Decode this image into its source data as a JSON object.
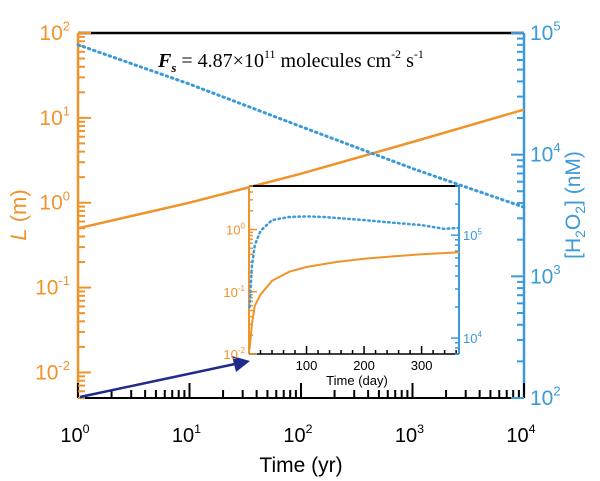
{
  "colors": {
    "left_axis": "#F0932B",
    "right_axis": "#3B9AD9",
    "frame_top": "#000000",
    "bottom_axis": "#000000",
    "arrow": "#1F2A8C"
  },
  "chart_data": [
    {
      "type": "line",
      "annotation": {
        "symbol": "F",
        "subscript": "s",
        "equals": " = 4.87×10",
        "exponent": "11",
        "units_text": " molecules cm",
        "units_exp1": "-2",
        "units_mid": " s",
        "units_exp2": "-1"
      },
      "xlabel": "Time (yr)",
      "x_scale": "log",
      "xlim": [
        1,
        10000
      ],
      "x_ticks": [
        {
          "value": 1,
          "base": "10",
          "exp": "0"
        },
        {
          "value": 10,
          "base": "10",
          "exp": "1"
        },
        {
          "value": 100,
          "base": "10",
          "exp": "2"
        },
        {
          "value": 1000,
          "base": "10",
          "exp": "3"
        },
        {
          "value": 10000,
          "base": "10",
          "exp": "4"
        }
      ],
      "ylabel_left": {
        "italic": "L",
        "rest": " (m)"
      },
      "y_left_scale": "log",
      "y_left_lim": [
        0.005,
        100
      ],
      "y_left_ticks": [
        {
          "value": 0.01,
          "base": "10",
          "exp": "-2"
        },
        {
          "value": 0.1,
          "base": "10",
          "exp": "-1"
        },
        {
          "value": 1,
          "base": "10",
          "exp": "0"
        },
        {
          "value": 10,
          "base": "10",
          "exp": "1"
        },
        {
          "value": 100,
          "base": "10",
          "exp": "2"
        }
      ],
      "ylabel_right": {
        "a": "[H",
        "sub": "2",
        "b": "O",
        "sub2": "2",
        "c": "] (nM)"
      },
      "y_right_scale": "log",
      "y_right_lim": [
        100,
        100000
      ],
      "y_right_ticks": [
        {
          "value": 100,
          "base": "10",
          "exp": "2"
        },
        {
          "value": 1000,
          "base": "10",
          "exp": "3"
        },
        {
          "value": 10000,
          "base": "10",
          "exp": "4"
        },
        {
          "value": 100000,
          "base": "10",
          "exp": "5"
        }
      ],
      "series": [
        {
          "axis": "left",
          "style": "solid",
          "x": [
            1,
            10,
            100,
            1000,
            10000
          ],
          "y": [
            0.5,
            1.0,
            2.2,
            5.2,
            12.5
          ]
        },
        {
          "axis": "right",
          "style": "dotted",
          "x": [
            1,
            10,
            100,
            1000,
            10000
          ],
          "y": [
            80000,
            38000,
            17000,
            7700,
            3700
          ]
        }
      ]
    },
    {
      "type": "line",
      "inset": true,
      "xlabel": "Time (day)",
      "x_scale": "linear",
      "xlim": [
        0,
        365
      ],
      "x_ticks": [
        {
          "value": 100,
          "label": "100"
        },
        {
          "value": 200,
          "label": "200"
        },
        {
          "value": 300,
          "label": "300"
        }
      ],
      "y_left_scale": "log",
      "y_left_lim": [
        0.01,
        5
      ],
      "y_left_ticks": [
        {
          "value": 0.01,
          "base": "10",
          "exp": "-2"
        },
        {
          "value": 0.1,
          "base": "10",
          "exp": "-1"
        },
        {
          "value": 1,
          "base": "10",
          "exp": "0"
        }
      ],
      "y_right_scale": "log",
      "y_right_lim": [
        7000,
        300000
      ],
      "y_right_ticks": [
        {
          "value": 10000,
          "base": "10",
          "exp": "4"
        },
        {
          "value": 100000,
          "base": "10",
          "exp": "5"
        }
      ],
      "series": [
        {
          "axis": "left",
          "style": "solid",
          "x": [
            1,
            5,
            10,
            20,
            40,
            70,
            100,
            150,
            200,
            250,
            300,
            365
          ],
          "y": [
            0.012,
            0.03,
            0.06,
            0.09,
            0.15,
            0.21,
            0.25,
            0.3,
            0.34,
            0.37,
            0.4,
            0.43
          ]
        },
        {
          "axis": "right",
          "style": "dotted",
          "x": [
            1,
            5,
            10,
            20,
            40,
            70,
            100,
            130,
            200,
            250,
            300,
            340,
            365
          ],
          "y": [
            20000,
            50000,
            80000,
            110000,
            140000,
            150000,
            152000,
            150000,
            140000,
            132000,
            125000,
            115000,
            118000
          ]
        }
      ]
    }
  ]
}
